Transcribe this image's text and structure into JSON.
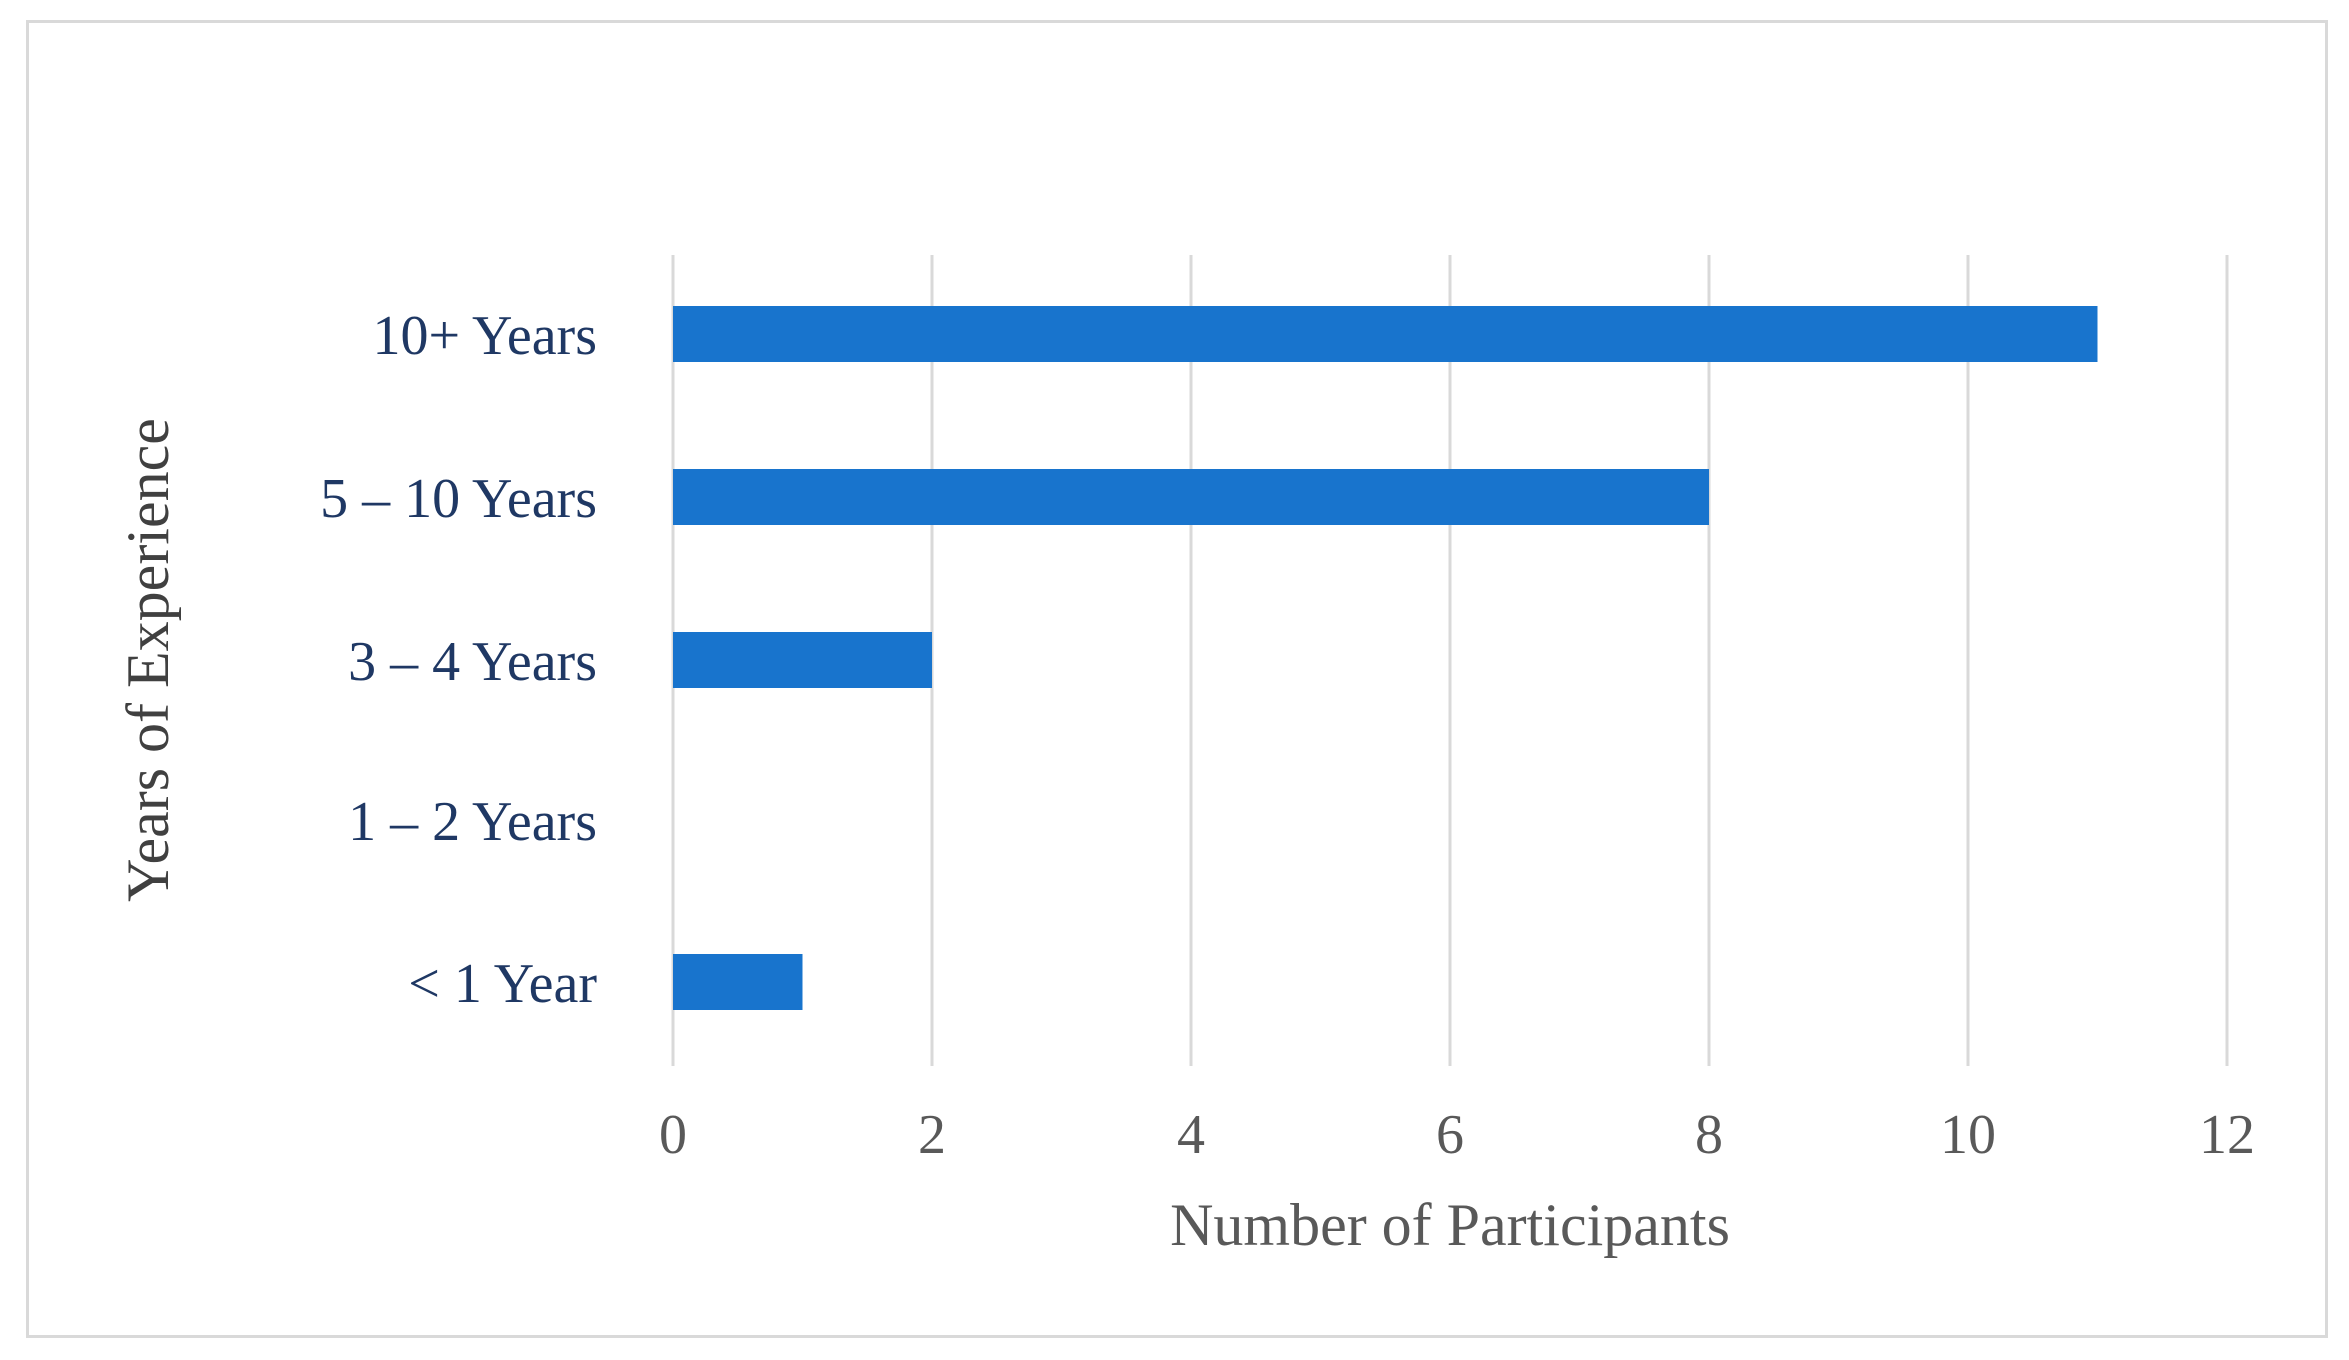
{
  "chart_data": {
    "type": "bar",
    "orientation": "horizontal",
    "categories": [
      "10+ Years",
      "5 – 10 Years",
      "3 – 4 Years",
      "1 – 2 Years",
      "< 1 Year"
    ],
    "values": [
      11,
      8,
      2,
      0,
      1
    ],
    "xlabel": "Number of Participants",
    "ylabel": "Years of Experience",
    "xlim": [
      0,
      12
    ],
    "xticks": [
      "0",
      "2",
      "4",
      "6",
      "8",
      "10",
      "12"
    ],
    "grid": "vertical",
    "legend": "none",
    "bar_color": "#1874cd",
    "gridline_color": "#d9d9d9"
  }
}
